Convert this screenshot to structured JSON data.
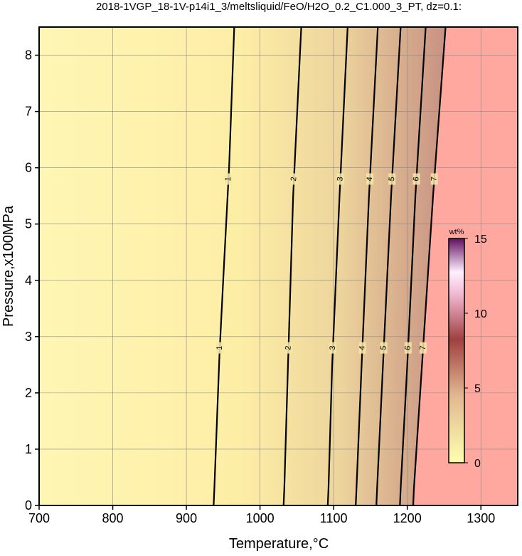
{
  "chart_data": {
    "type": "contour",
    "title": "2018-1VGP_18-1V-p14i1_3/meltsliquid/FeO/H2O_0.2_C1.000_3_PT, dz=0.1:",
    "x_label": "Temperature,°C",
    "y_label": "Pressure,x100MPa",
    "xlim": [
      700,
      1350
    ],
    "xticks": [
      700,
      800,
      900,
      1000,
      1100,
      1200,
      1300
    ],
    "ylim": [
      0,
      8.5
    ],
    "yticks": [
      0,
      1,
      2,
      3,
      4,
      5,
      6,
      7,
      8
    ],
    "grid": true,
    "contours": [
      {
        "level": 1,
        "T": [
          937,
          938,
          945,
          950,
          958,
          965
        ],
        "P": [
          0,
          0.3,
          2.7,
          4,
          6,
          8.5
        ]
      },
      {
        "level": 2,
        "T": [
          1032,
          1033,
          1038,
          1045,
          1056
        ],
        "P": [
          0,
          0.3,
          2.5,
          5.5,
          8.5
        ]
      },
      {
        "level": 3,
        "T": [
          1092,
          1093,
          1098,
          1108,
          1119
        ],
        "P": [
          0,
          0.3,
          2.5,
          5.5,
          8.5
        ]
      },
      {
        "level": 4,
        "T": [
          1130,
          1131,
          1138,
          1148,
          1160
        ],
        "P": [
          0,
          0.3,
          2.5,
          5.5,
          8.5
        ]
      },
      {
        "level": 5,
        "T": [
          1158,
          1159,
          1167,
          1178,
          1191
        ],
        "P": [
          0,
          0.3,
          2.5,
          5.5,
          8.5
        ]
      },
      {
        "level": 6,
        "T": [
          1190,
          1191,
          1200,
          1211,
          1225
        ],
        "P": [
          0,
          0.3,
          2.5,
          5.5,
          8.5
        ]
      },
      {
        "level": 7,
        "T": [
          1208,
          1209,
          1220,
          1235,
          1252
        ],
        "P": [
          0,
          0.3,
          2.5,
          5.5,
          8.5
        ]
      }
    ],
    "colorbar": {
      "label": "wt%",
      "zlim": [
        0,
        15
      ],
      "zticks": [
        0,
        5,
        10,
        15
      ]
    }
  }
}
